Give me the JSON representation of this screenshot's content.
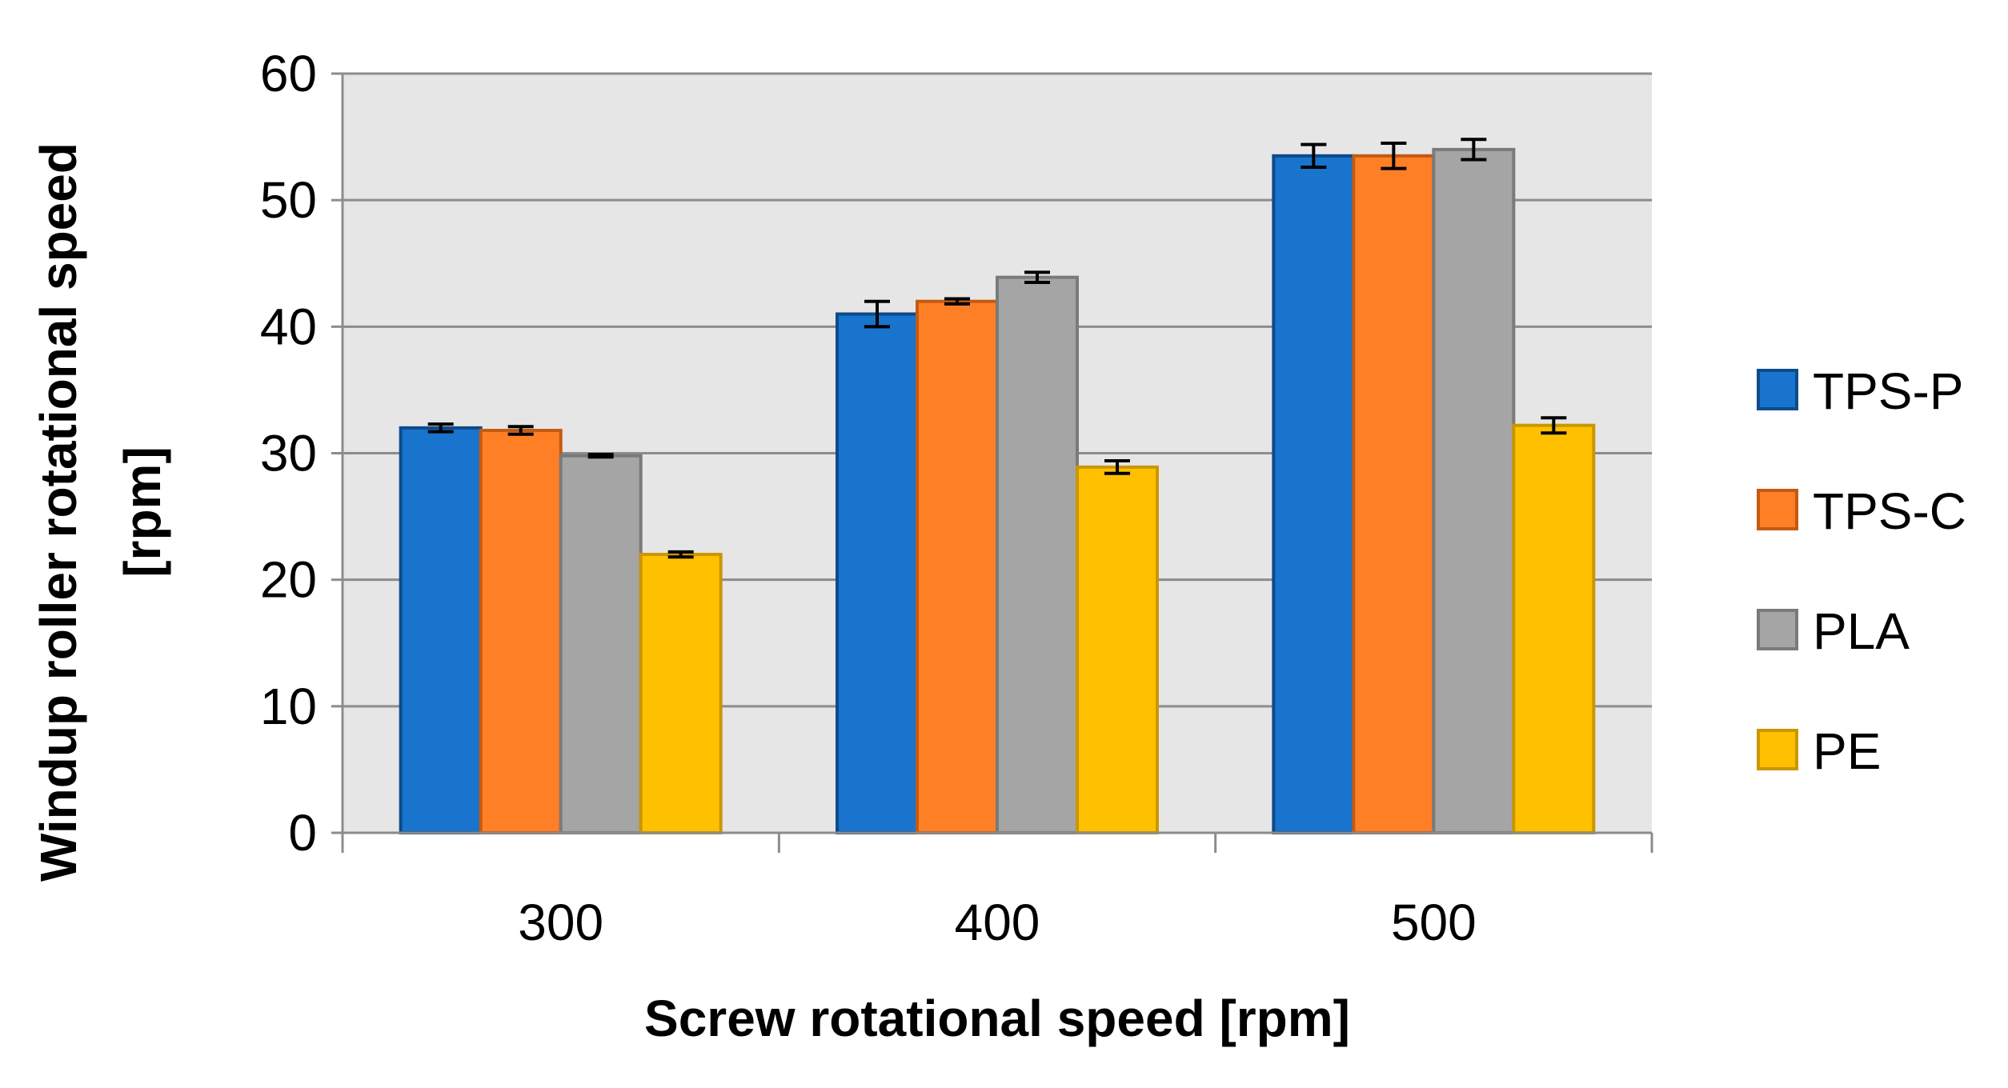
{
  "chart_data": {
    "type": "bar",
    "title": "",
    "xlabel": "Screw rotational speed [rpm]",
    "ylabel_line1": "Windup roller rotational speed",
    "ylabel_line2": "[rpm]",
    "categories": [
      "300",
      "400",
      "500"
    ],
    "ylim": [
      0,
      60
    ],
    "yticks": [
      "0",
      "10",
      "20",
      "30",
      "40",
      "50",
      "60"
    ],
    "grid": true,
    "legend_position": "right",
    "series": [
      {
        "name": "TPS-P",
        "color": "#1874CD",
        "border": "#0E4A8A",
        "values": [
          32.0,
          41.0,
          53.5
        ],
        "errors": [
          0.3,
          1.0,
          0.9
        ]
      },
      {
        "name": "TPS-C",
        "color": "#FF7F27",
        "border": "#C45A12",
        "values": [
          31.8,
          42.0,
          53.5
        ],
        "errors": [
          0.3,
          0.2,
          1.0
        ]
      },
      {
        "name": "PLA",
        "color": "#A5A5A5",
        "border": "#7A7A7A",
        "values": [
          29.8,
          43.9,
          54.0
        ],
        "errors": [
          0.1,
          0.4,
          0.8
        ]
      },
      {
        "name": "PE",
        "color": "#FFC000",
        "border": "#C99700",
        "values": [
          22.0,
          28.9,
          32.2
        ],
        "errors": [
          0.2,
          0.5,
          0.6
        ]
      }
    ]
  }
}
